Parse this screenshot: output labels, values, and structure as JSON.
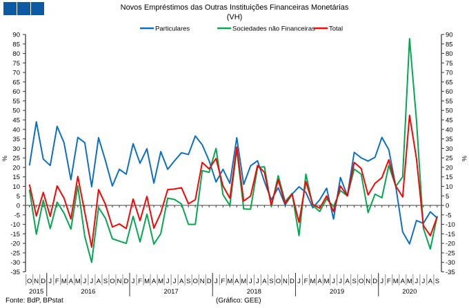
{
  "header": {
    "logo_color": "#0b5aa3"
  },
  "chart_data": {
    "type": "line",
    "title": "Novos Empréstimos das Outras Instituições Financeiras Monetárias",
    "subtitle": "(VH)",
    "ylabel": "%",
    "ylim": [
      -35,
      90
    ],
    "ytick_step": 5,
    "grid": false,
    "legend_position": "top",
    "month_labels": [
      "O",
      "N",
      "D",
      "J",
      "F",
      "M",
      "A",
      "M",
      "J",
      "J",
      "A",
      "S",
      "O",
      "N",
      "D",
      "J",
      "F",
      "M",
      "A",
      "M",
      "J",
      "J",
      "A",
      "S",
      "O",
      "N",
      "D",
      "J",
      "F",
      "M",
      "A",
      "M",
      "J",
      "J",
      "A",
      "S",
      "O",
      "N",
      "D",
      "J",
      "F",
      "M",
      "A",
      "M",
      "J",
      "J",
      "A",
      "S",
      "O",
      "N",
      "D",
      "J",
      "F",
      "M",
      "A",
      "M",
      "J",
      "J",
      "A",
      "S"
    ],
    "years": [
      {
        "label": "2015",
        "months": 3
      },
      {
        "label": "2016",
        "months": 12
      },
      {
        "label": "2017",
        "months": 12
      },
      {
        "label": "2018",
        "months": 12
      },
      {
        "label": "2019",
        "months": 12
      },
      {
        "label": "2020",
        "months": 9
      }
    ],
    "series": [
      {
        "name": "Particulares",
        "color": "#0a6fc2",
        "values": [
          21,
          44,
          24.4,
          21,
          41.6,
          33,
          13.5,
          35.8,
          33,
          9.8,
          35.6,
          23.5,
          10.2,
          19,
          16.4,
          32.5,
          22.2,
          29.8,
          11.7,
          28.3,
          19,
          23.5,
          27.7,
          26.8,
          36.5,
          31.9,
          23.5,
          12.3,
          19,
          11.6,
          35.6,
          11,
          20.8,
          23.5,
          12.5,
          2.9,
          9.3,
          0.2,
          5.9,
          9.8,
          6.8,
          -1.3,
          2.9,
          9,
          -7.2,
          14.7,
          5,
          27.9,
          25,
          23.3,
          25.3,
          35.8,
          29.3,
          10,
          -14,
          -20.3,
          -8,
          -9.5,
          -3.4,
          -6.7
        ]
      },
      {
        "name": "Sociedades não Financeiras",
        "color": "#00a84f",
        "values": [
          8.3,
          -15.2,
          2.7,
          -12.2,
          1.7,
          -4.1,
          -12.5,
          10.2,
          -16.4,
          -30,
          -1.1,
          -6.8,
          -17.6,
          -18.8,
          -20,
          -5.8,
          -19.2,
          -4.6,
          -20.4,
          -14.9,
          3.8,
          3.1,
          0.7,
          -10,
          -10,
          18.3,
          17.4,
          30,
          5.6,
          -0.1,
          29.5,
          -1.9,
          -2,
          20,
          20.3,
          -0.5,
          15.6,
          1.9,
          6.3,
          -15.9,
          16.4,
          -0.1,
          -3.2,
          3.4,
          -0.5,
          7.8,
          5,
          19.1,
          16.4,
          -3.8,
          5.9,
          4,
          21,
          10,
          15,
          87.8,
          45,
          -12,
          -23,
          -5.6
        ]
      },
      {
        "name": "Total",
        "color": "#ff0000",
        "values": [
          11,
          -5.6,
          6.8,
          -5.8,
          10.2,
          3.8,
          -7.2,
          15.2,
          -3.7,
          -22,
          8.3,
          0.5,
          -11.4,
          -9.8,
          -12.2,
          3.3,
          -8,
          4.7,
          -12,
          -4,
          8.3,
          8.6,
          9.3,
          0.8,
          3,
          22.6,
          19.2,
          24.7,
          10.2,
          3.7,
          30.7,
          2.3,
          4.9,
          21,
          17.4,
          0.2,
          13.5,
          1,
          5.9,
          -9,
          12.6,
          0.5,
          -1.5,
          5,
          -3.2,
          10.2,
          5,
          22.6,
          19.4,
          5.5,
          11.6,
          14.6,
          24,
          10.2,
          4.4,
          47.4,
          24.6,
          -10.6,
          -16,
          -6
        ]
      }
    ]
  },
  "footer": {
    "source": "Fonte: BdP, BPstat",
    "credit": "(Gráfico: GEE)"
  }
}
